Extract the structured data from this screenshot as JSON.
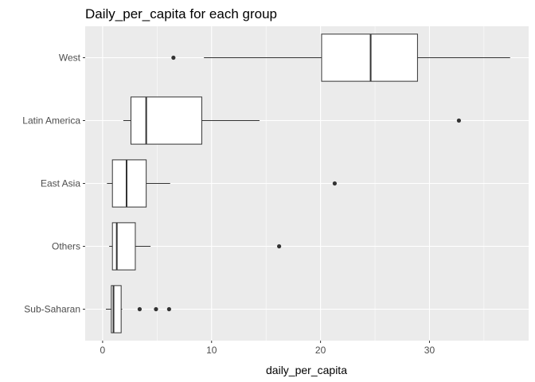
{
  "chart_data": {
    "type": "boxplot",
    "orientation": "horizontal",
    "title": "Daily_per_capita for each group",
    "xlabel": "daily_per_capita",
    "ylabel": "",
    "xlim": [
      -1.6,
      39.1
    ],
    "xticks": [
      0,
      10,
      20,
      30
    ],
    "grid": true,
    "legend": "none",
    "colors": {
      "panel": "#ebebeb",
      "grid_major": "#ffffff",
      "box_fill": "#ffffff",
      "stroke": "#333333",
      "outlier": "#333333"
    },
    "groups": [
      {
        "name": "West",
        "whisker_low": 9.3,
        "q1": 20.1,
        "median": 24.6,
        "q3": 28.9,
        "whisker_high": 37.4,
        "outliers": [
          6.5
        ]
      },
      {
        "name": "Latin America",
        "whisker_low": 1.9,
        "q1": 2.6,
        "median": 4.0,
        "q3": 9.1,
        "whisker_high": 14.4,
        "outliers": [
          32.7
        ]
      },
      {
        "name": "East Asia",
        "whisker_low": 0.4,
        "q1": 0.9,
        "median": 2.2,
        "q3": 4.0,
        "whisker_high": 6.2,
        "outliers": [
          21.3
        ]
      },
      {
        "name": "Others",
        "whisker_low": 0.6,
        "q1": 0.9,
        "median": 1.3,
        "q3": 3.0,
        "whisker_high": 4.4,
        "outliers": [
          16.2
        ]
      },
      {
        "name": "Sub-Saharan",
        "whisker_low": 0.3,
        "q1": 0.8,
        "median": 1.0,
        "q3": 1.7,
        "whisker_high": 1.8,
        "outliers": [
          3.4,
          4.9,
          6.1
        ]
      }
    ]
  }
}
